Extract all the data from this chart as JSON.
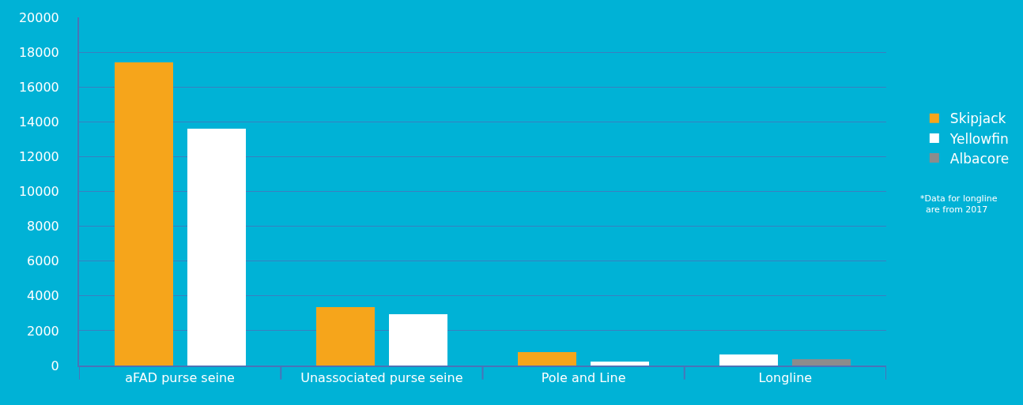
{
  "chart_data": {
    "type": "bar",
    "categories": [
      "aFAD purse seine",
      "Unassociated purse seine",
      "Pole and Line",
      "Longline"
    ],
    "series": [
      {
        "name": "Skipjack",
        "color": "#f6a51b",
        "values": [
          17400,
          3350,
          770,
          null
        ]
      },
      {
        "name": "Yellowfin",
        "color": "#ffffff",
        "values": [
          13600,
          2950,
          230,
          630
        ]
      },
      {
        "name": "Albacore",
        "color": "#8c8c8c",
        "values": [
          null,
          null,
          null,
          360
        ]
      }
    ],
    "ylim": [
      0,
      20000
    ],
    "yticks": [
      0,
      2000,
      4000,
      6000,
      8000,
      10000,
      12000,
      14000,
      16000,
      18000,
      20000
    ],
    "grid": "y",
    "legend": "right",
    "annotations": [
      "*Data for longline are from 2017"
    ]
  }
}
